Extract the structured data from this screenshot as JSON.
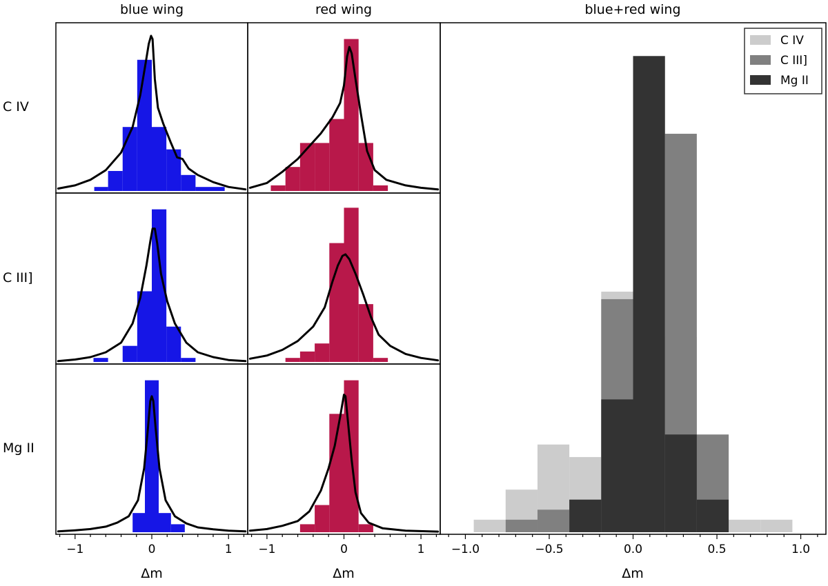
{
  "colors": {
    "blue_wing": "#1616e6",
    "red_wing": "#b8184a",
    "kde": "#000000",
    "civ_gray": "#cccccc",
    "ciii_gray": "#808080",
    "mgii_gray": "#333333"
  },
  "column_titles": [
    "blue wing",
    "red wing",
    "blue+red wing"
  ],
  "row_labels": [
    "C IV",
    "C III]",
    "Mg II"
  ],
  "x_label": "Δm",
  "chart_data": [
    {
      "type": "bar",
      "title": "blue wing",
      "row_label": "C IV",
      "xlabel": "Δm",
      "xlim": [
        -1.25,
        1.25
      ],
      "ylim": [
        0,
        1.0
      ],
      "series": [
        {
          "name": "blue wing C IV",
          "bins": [
            [
              -0.75,
              -0.57,
              0.025
            ],
            [
              -0.57,
              -0.38,
              0.125
            ],
            [
              -0.38,
              -0.19,
              0.4
            ],
            [
              -0.19,
              0.0,
              0.82
            ],
            [
              0.0,
              0.19,
              0.4
            ],
            [
              0.19,
              0.38,
              0.26
            ],
            [
              0.38,
              0.57,
              0.1
            ],
            [
              0.57,
              0.95,
              0.025
            ]
          ]
        }
      ],
      "kde": [
        [
          -1.22,
          0.015
        ],
        [
          -1.0,
          0.035
        ],
        [
          -0.8,
          0.07
        ],
        [
          -0.6,
          0.13
        ],
        [
          -0.4,
          0.24
        ],
        [
          -0.25,
          0.4
        ],
        [
          -0.15,
          0.6
        ],
        [
          -0.08,
          0.8
        ],
        [
          -0.04,
          0.92
        ],
        [
          -0.01,
          0.97
        ],
        [
          0.01,
          0.95
        ],
        [
          0.04,
          0.7
        ],
        [
          0.08,
          0.52
        ],
        [
          0.15,
          0.42
        ],
        [
          0.25,
          0.3
        ],
        [
          0.33,
          0.21
        ],
        [
          0.4,
          0.2
        ],
        [
          0.48,
          0.14
        ],
        [
          0.6,
          0.1
        ],
        [
          0.8,
          0.055
        ],
        [
          1.0,
          0.025
        ],
        [
          1.22,
          0.01
        ]
      ]
    },
    {
      "type": "bar",
      "title": "red wing",
      "row_label": "C IV",
      "xlabel": "Δm",
      "xlim": [
        -1.25,
        1.25
      ],
      "ylim": [
        0,
        1.0
      ],
      "series": [
        {
          "name": "red wing C IV",
          "bins": [
            [
              -0.95,
              -0.76,
              0.035
            ],
            [
              -0.76,
              -0.57,
              0.15
            ],
            [
              -0.57,
              -0.38,
              0.3
            ],
            [
              -0.38,
              -0.19,
              0.3
            ],
            [
              -0.19,
              0.0,
              0.45
            ],
            [
              0.0,
              0.19,
              0.95
            ],
            [
              0.19,
              0.38,
              0.3
            ],
            [
              0.38,
              0.57,
              0.035
            ]
          ]
        }
      ],
      "kde": [
        [
          -1.22,
          0.02
        ],
        [
          -1.0,
          0.05
        ],
        [
          -0.8,
          0.12
        ],
        [
          -0.6,
          0.2
        ],
        [
          -0.45,
          0.28
        ],
        [
          -0.3,
          0.36
        ],
        [
          -0.15,
          0.46
        ],
        [
          -0.05,
          0.55
        ],
        [
          0.0,
          0.66
        ],
        [
          0.04,
          0.84
        ],
        [
          0.07,
          0.9
        ],
        [
          0.1,
          0.86
        ],
        [
          0.15,
          0.7
        ],
        [
          0.22,
          0.48
        ],
        [
          0.3,
          0.25
        ],
        [
          0.4,
          0.13
        ],
        [
          0.55,
          0.07
        ],
        [
          0.8,
          0.035
        ],
        [
          1.0,
          0.02
        ],
        [
          1.22,
          0.01
        ]
      ]
    },
    {
      "type": "bar",
      "title": "blue wing",
      "row_label": "C III]",
      "xlabel": "Δm",
      "xlim": [
        -1.25,
        1.25
      ],
      "ylim": [
        0,
        1.0
      ],
      "series": [
        {
          "name": "blue wing C III]",
          "bins": [
            [
              -0.76,
              -0.57,
              0.025
            ],
            [
              -0.38,
              -0.19,
              0.1
            ],
            [
              -0.19,
              0.0,
              0.44
            ],
            [
              0.0,
              0.19,
              0.95
            ],
            [
              0.19,
              0.38,
              0.22
            ],
            [
              0.38,
              0.57,
              0.025
            ]
          ]
        }
      ],
      "kde": [
        [
          -1.22,
          0.005
        ],
        [
          -1.0,
          0.015
        ],
        [
          -0.8,
          0.03
        ],
        [
          -0.6,
          0.06
        ],
        [
          -0.4,
          0.12
        ],
        [
          -0.25,
          0.24
        ],
        [
          -0.15,
          0.4
        ],
        [
          -0.07,
          0.6
        ],
        [
          -0.02,
          0.75
        ],
        [
          0.01,
          0.83
        ],
        [
          0.04,
          0.83
        ],
        [
          0.07,
          0.74
        ],
        [
          0.12,
          0.55
        ],
        [
          0.2,
          0.38
        ],
        [
          0.3,
          0.24
        ],
        [
          0.45,
          0.12
        ],
        [
          0.6,
          0.06
        ],
        [
          0.8,
          0.03
        ],
        [
          1.0,
          0.012
        ],
        [
          1.22,
          0.005
        ]
      ]
    },
    {
      "type": "bar",
      "title": "red wing",
      "row_label": "C III]",
      "xlabel": "Δm",
      "xlim": [
        -1.25,
        1.25
      ],
      "ylim": [
        0,
        1.0
      ],
      "series": [
        {
          "name": "red wing C III]",
          "bins": [
            [
              -0.76,
              -0.57,
              0.025
            ],
            [
              -0.57,
              -0.38,
              0.065
            ],
            [
              -0.38,
              -0.19,
              0.115
            ],
            [
              -0.19,
              0.0,
              0.74
            ],
            [
              0.0,
              0.19,
              0.96
            ],
            [
              0.19,
              0.38,
              0.36
            ],
            [
              0.38,
              0.57,
              0.025
            ]
          ]
        }
      ],
      "kde": [
        [
          -1.22,
          0.02
        ],
        [
          -1.0,
          0.04
        ],
        [
          -0.8,
          0.075
        ],
        [
          -0.6,
          0.13
        ],
        [
          -0.4,
          0.22
        ],
        [
          -0.25,
          0.34
        ],
        [
          -0.15,
          0.5
        ],
        [
          -0.08,
          0.6
        ],
        [
          -0.02,
          0.66
        ],
        [
          0.02,
          0.67
        ],
        [
          0.07,
          0.64
        ],
        [
          0.15,
          0.55
        ],
        [
          0.25,
          0.42
        ],
        [
          0.35,
          0.28
        ],
        [
          0.45,
          0.17
        ],
        [
          0.6,
          0.1
        ],
        [
          0.8,
          0.05
        ],
        [
          1.0,
          0.025
        ],
        [
          1.22,
          0.01
        ]
      ]
    },
    {
      "type": "bar",
      "title": "blue wing",
      "row_label": "Mg II",
      "xlabel": "Δm",
      "xlim": [
        -1.25,
        1.25
      ],
      "ylim": [
        0,
        1.0
      ],
      "series": [
        {
          "name": "blue wing Mg II",
          "bins": [
            [
              -0.25,
              -0.09,
              0.12
            ],
            [
              -0.09,
              0.09,
              0.95
            ],
            [
              0.09,
              0.25,
              0.12
            ],
            [
              0.25,
              0.43,
              0.05
            ]
          ]
        }
      ],
      "kde": [
        [
          -1.22,
          0.005
        ],
        [
          -1.0,
          0.012
        ],
        [
          -0.8,
          0.02
        ],
        [
          -0.6,
          0.035
        ],
        [
          -0.45,
          0.06
        ],
        [
          -0.3,
          0.1
        ],
        [
          -0.18,
          0.2
        ],
        [
          -0.1,
          0.4
        ],
        [
          -0.05,
          0.65
        ],
        [
          -0.02,
          0.82
        ],
        [
          0.0,
          0.85
        ],
        [
          0.02,
          0.82
        ],
        [
          0.05,
          0.65
        ],
        [
          0.1,
          0.4
        ],
        [
          0.18,
          0.2
        ],
        [
          0.3,
          0.1
        ],
        [
          0.45,
          0.055
        ],
        [
          0.6,
          0.03
        ],
        [
          0.8,
          0.018
        ],
        [
          1.0,
          0.01
        ],
        [
          1.22,
          0.005
        ]
      ]
    },
    {
      "type": "bar",
      "title": "red wing",
      "row_label": "Mg II",
      "xlabel": "Δm",
      "xlim": [
        -1.25,
        1.25
      ],
      "ylim": [
        0,
        1.0
      ],
      "series": [
        {
          "name": "red wing Mg II",
          "bins": [
            [
              -0.57,
              -0.38,
              0.05
            ],
            [
              -0.38,
              -0.19,
              0.17
            ],
            [
              -0.19,
              0.0,
              0.74
            ],
            [
              0.0,
              0.19,
              0.95
            ],
            [
              0.19,
              0.38,
              0.05
            ]
          ]
        }
      ],
      "kde": [
        [
          -1.22,
          0.01
        ],
        [
          -1.0,
          0.02
        ],
        [
          -0.8,
          0.04
        ],
        [
          -0.6,
          0.07
        ],
        [
          -0.45,
          0.13
        ],
        [
          -0.3,
          0.26
        ],
        [
          -0.2,
          0.4
        ],
        [
          -0.12,
          0.54
        ],
        [
          -0.05,
          0.72
        ],
        [
          0.0,
          0.86
        ],
        [
          0.02,
          0.85
        ],
        [
          0.05,
          0.7
        ],
        [
          0.1,
          0.45
        ],
        [
          0.15,
          0.25
        ],
        [
          0.22,
          0.12
        ],
        [
          0.32,
          0.06
        ],
        [
          0.5,
          0.025
        ],
        [
          0.8,
          0.01
        ],
        [
          1.22,
          0.004
        ]
      ]
    },
    {
      "type": "bar",
      "title": "blue+red wing",
      "xlabel": "Δm",
      "xlim": [
        -1.15,
        1.15
      ],
      "ylim": [
        0,
        1.0
      ],
      "xticks": [
        -1.0,
        -0.5,
        0.0,
        0.5,
        1.0
      ],
      "xtick_labels": [
        "−1.0",
        "−0.5",
        "0.0",
        "0.5",
        "1.0"
      ],
      "legend": {
        "position": "top-right",
        "entries": [
          "C IV",
          "C III]",
          "Mg II"
        ]
      },
      "series": [
        {
          "name": "C IV",
          "bins": [
            [
              -0.95,
              -0.76,
              0.025
            ],
            [
              -0.76,
              -0.57,
              0.085
            ],
            [
              -0.57,
              -0.38,
              0.175
            ],
            [
              -0.38,
              -0.19,
              0.15
            ],
            [
              -0.19,
              0.0,
              0.48
            ],
            [
              0.0,
              0.19,
              0.95
            ],
            [
              0.19,
              0.38,
              0.39
            ],
            [
              0.38,
              0.57,
              0.1
            ],
            [
              0.57,
              0.76,
              0.025
            ],
            [
              0.76,
              0.95,
              0.025
            ]
          ]
        },
        {
          "name": "C III]",
          "bins": [
            [
              -0.76,
              -0.57,
              0.025
            ],
            [
              -0.57,
              -0.38,
              0.045
            ],
            [
              -0.38,
              -0.19,
              0.065
            ],
            [
              -0.19,
              0.0,
              0.465
            ],
            [
              0.0,
              0.19,
              0.95
            ],
            [
              0.19,
              0.38,
              0.795
            ],
            [
              0.38,
              0.57,
              0.195
            ]
          ]
        },
        {
          "name": "Mg II",
          "bins": [
            [
              -0.38,
              -0.19,
              0.065
            ],
            [
              -0.19,
              0.0,
              0.265
            ],
            [
              0.0,
              0.19,
              0.95
            ],
            [
              0.19,
              0.38,
              0.195
            ],
            [
              0.38,
              0.57,
              0.065
            ]
          ]
        }
      ]
    }
  ],
  "small_xticks": [
    -1,
    0,
    1
  ],
  "small_xtick_labels": [
    "−1",
    "0",
    "1"
  ]
}
